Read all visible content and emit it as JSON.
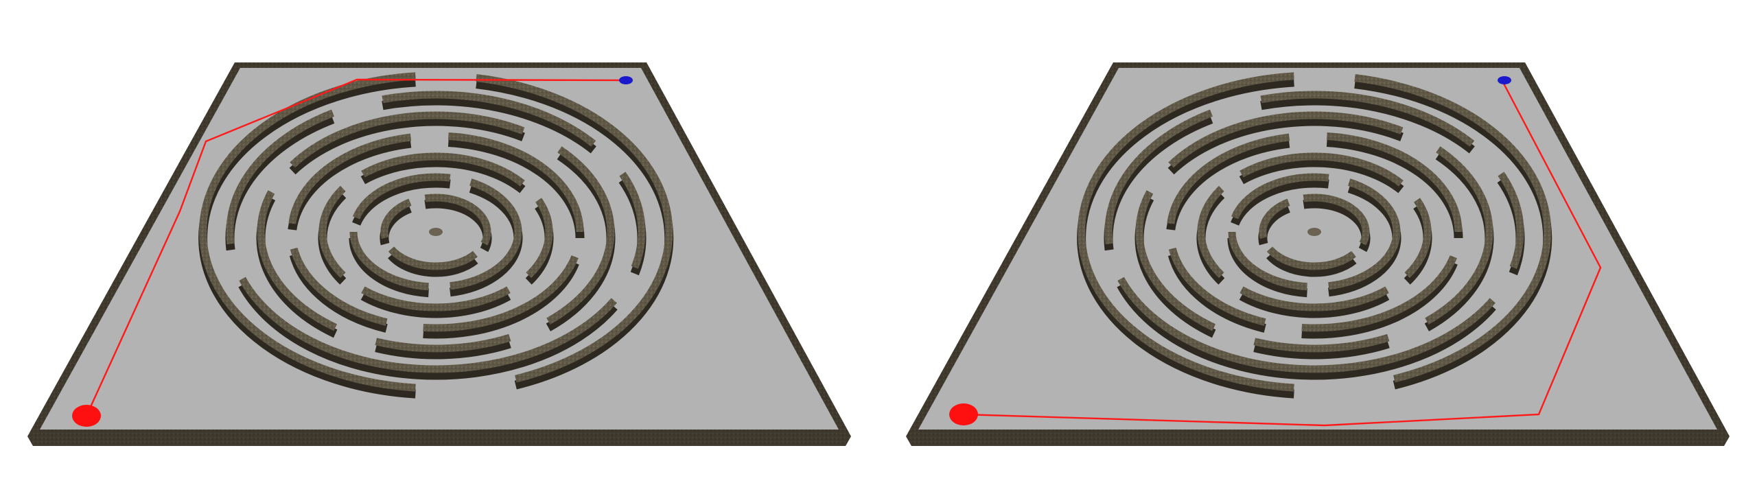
{
  "scene": {
    "background": "#ffffff",
    "floor_color": "#b3b3b3",
    "wall_top_color": "#6b6352",
    "wall_side_color": "#3e382d",
    "wall_dark_color": "#2d2820",
    "start_marker_color": "#ff1010",
    "goal_marker_color": "#1a1acc",
    "path_color": "#ff1a1a"
  },
  "panels": [
    {
      "id": "left",
      "marker_start": "start-marker",
      "marker_goal": "goal-marker",
      "route": "outside-left"
    },
    {
      "id": "right",
      "marker_start": "start-marker",
      "marker_goal": "goal-marker",
      "route": "outside-right"
    }
  ]
}
